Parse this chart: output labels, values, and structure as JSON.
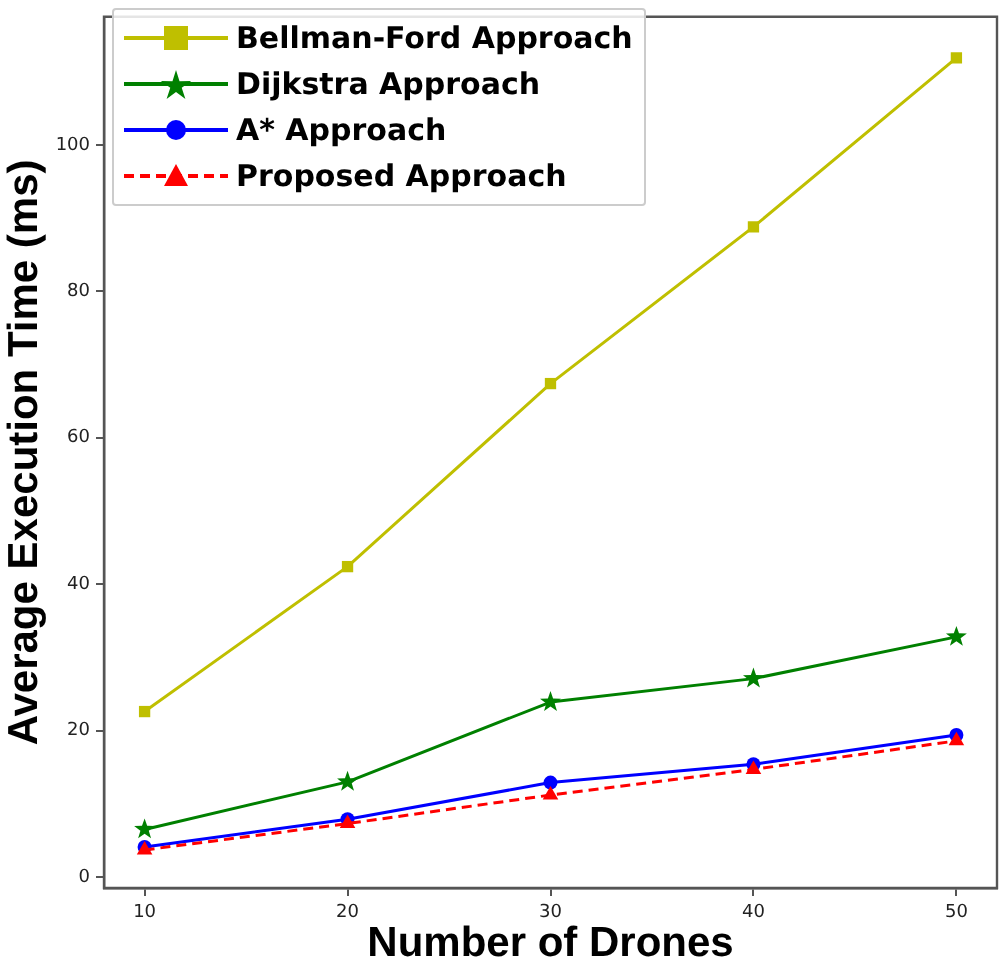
{
  "chart_data": {
    "type": "line",
    "xlabel": "Number of Drones",
    "ylabel": "Average Execution Time (ms)",
    "x": [
      10,
      20,
      30,
      40,
      50
    ],
    "series": [
      {
        "name": "Bellman-Ford Approach",
        "color": "#bfbf00",
        "marker": "square",
        "line_style": "solid",
        "values": [
          22.6,
          42.4,
          67.4,
          88.8,
          111.9
        ]
      },
      {
        "name": "Dijkstra Approach",
        "color": "#008000",
        "marker": "star",
        "line_style": "solid",
        "values": [
          6.5,
          13.0,
          23.9,
          27.1,
          32.8
        ]
      },
      {
        "name": "A* Approach",
        "color": "#0000ff",
        "marker": "circle",
        "line_style": "solid",
        "values": [
          4.1,
          7.9,
          12.9,
          15.4,
          19.4
        ]
      },
      {
        "name": "Proposed Approach",
        "color": "#ff0000",
        "marker": "triangle",
        "line_style": "dashed",
        "values": [
          3.7,
          7.3,
          11.2,
          14.7,
          18.6
        ]
      }
    ],
    "xlim": [
      8,
      52
    ],
    "xticks": [
      10,
      20,
      30,
      40,
      50
    ],
    "ylim": [
      -1.5,
      117.5
    ],
    "yticks": [
      0,
      20,
      40,
      60,
      80,
      100
    ],
    "grid": false,
    "legend": "top left"
  }
}
